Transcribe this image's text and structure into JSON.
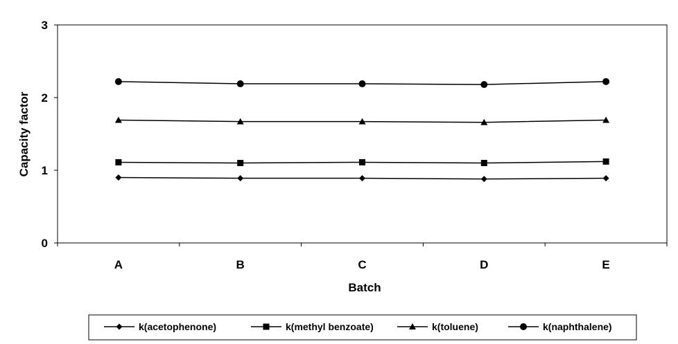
{
  "chart_data": {
    "type": "line",
    "title": "",
    "xlabel": "Batch",
    "ylabel": "Capacity factor",
    "categories": [
      "A",
      "B",
      "C",
      "D",
      "E"
    ],
    "ylim": [
      0,
      3
    ],
    "yticks": [
      0,
      1,
      2,
      3
    ],
    "grid": false,
    "legend_position": "bottom",
    "colors": {
      "line": "#000000",
      "axis": "#000000",
      "background": "#ffffff"
    },
    "series": [
      {
        "name": "k(acetophenone)",
        "marker": "diamond",
        "values": [
          0.9,
          0.89,
          0.89,
          0.88,
          0.89
        ]
      },
      {
        "name": "k(methyl benzoate)",
        "marker": "square",
        "values": [
          1.11,
          1.1,
          1.11,
          1.1,
          1.12
        ]
      },
      {
        "name": "k(toluene)",
        "marker": "triangle",
        "values": [
          1.69,
          1.67,
          1.67,
          1.66,
          1.69
        ]
      },
      {
        "name": "k(naphthalene)",
        "marker": "circle",
        "values": [
          2.22,
          2.19,
          2.19,
          2.18,
          2.22
        ]
      }
    ]
  }
}
